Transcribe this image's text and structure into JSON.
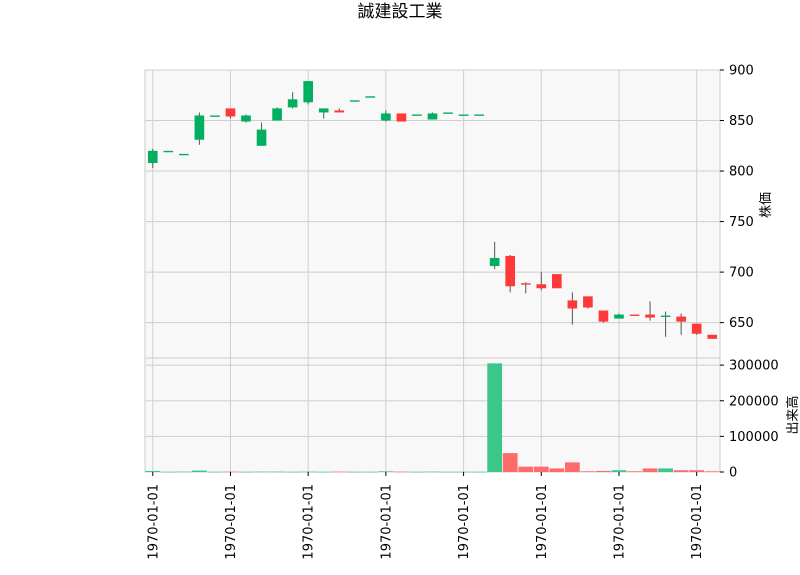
{
  "chart_data": {
    "type": "candlestick",
    "title": "誠建設工業",
    "price_ylabel": "株価",
    "volume_ylabel": "出来高",
    "price_ylim": [
      615,
      900
    ],
    "price_yticks": [
      "650",
      "700",
      "750",
      "800",
      "850",
      "900"
    ],
    "volume_ylim": [
      0,
      320000
    ],
    "volume_yticks": [
      "0",
      "100000",
      "200000",
      "300000"
    ],
    "xtick_labels": [
      "1970-01-01",
      "1970-01-01",
      "1970-01-01",
      "1970-01-01",
      "1970-01-01",
      "1970-01-01",
      "1970-01-01",
      "1970-01-01"
    ],
    "up_color": "#00b060",
    "down_color": "#ff3838",
    "volume_down_color": "#ff6b6b",
    "volume_up_color": "#3cc78a",
    "candles": [
      {
        "open": 808,
        "high": 822,
        "low": 803,
        "close": 820,
        "volume": 3000
      },
      {
        "open": 820,
        "high": 820,
        "low": 820,
        "close": 820,
        "volume": 500
      },
      {
        "open": 817,
        "high": 817,
        "low": 817,
        "close": 817,
        "volume": 1000
      },
      {
        "open": 831,
        "high": 858,
        "low": 826,
        "close": 855,
        "volume": 4000
      },
      {
        "open": 855,
        "high": 855,
        "low": 855,
        "close": 855,
        "volume": 500
      },
      {
        "open": 862,
        "high": 862,
        "low": 852,
        "close": 854,
        "volume": 1000
      },
      {
        "open": 849,
        "high": 856,
        "low": 848,
        "close": 855,
        "volume": 500
      },
      {
        "open": 825,
        "high": 848,
        "low": 825,
        "close": 841,
        "volume": 1000
      },
      {
        "open": 850,
        "high": 863,
        "low": 850,
        "close": 862,
        "volume": 1000
      },
      {
        "open": 863,
        "high": 878,
        "low": 862,
        "close": 871,
        "volume": 500
      },
      {
        "open": 868,
        "high": 889,
        "low": 866,
        "close": 889,
        "volume": 1000
      },
      {
        "open": 858,
        "high": 862,
        "low": 852,
        "close": 862,
        "volume": 500
      },
      {
        "open": 860,
        "high": 862,
        "low": 858,
        "close": 858,
        "volume": 1000
      },
      {
        "open": 870,
        "high": 870,
        "low": 870,
        "close": 870,
        "volume": 500
      },
      {
        "open": 874,
        "high": 874,
        "low": 874,
        "close": 874,
        "volume": 500
      },
      {
        "open": 850,
        "high": 860,
        "low": 849,
        "close": 857,
        "volume": 2000
      },
      {
        "open": 857,
        "high": 857,
        "low": 849,
        "close": 849,
        "volume": 1000
      },
      {
        "open": 856,
        "high": 856,
        "low": 856,
        "close": 856,
        "volume": 500
      },
      {
        "open": 851,
        "high": 858,
        "low": 851,
        "close": 857,
        "volume": 1000
      },
      {
        "open": 858,
        "high": 858,
        "low": 858,
        "close": 858,
        "volume": 500
      },
      {
        "open": 856,
        "high": 856,
        "low": 856,
        "close": 856,
        "volume": 500
      },
      {
        "open": 856,
        "high": 856,
        "low": 856,
        "close": 856,
        "volume": 500
      },
      {
        "open": 706,
        "high": 730,
        "low": 703,
        "close": 714,
        "volume": 305000
      },
      {
        "open": 716,
        "high": 717,
        "low": 680,
        "close": 686,
        "volume": 53000
      },
      {
        "open": 689,
        "high": 690,
        "low": 679,
        "close": 688,
        "volume": 15000
      },
      {
        "open": 688,
        "high": 700,
        "low": 682,
        "close": 684,
        "volume": 15000
      },
      {
        "open": 698,
        "high": 698,
        "low": 684,
        "close": 684,
        "volume": 10000
      },
      {
        "open": 672,
        "high": 680,
        "low": 648,
        "close": 664,
        "volume": 27000
      },
      {
        "open": 676,
        "high": 676,
        "low": 664,
        "close": 665,
        "volume": 2000
      },
      {
        "open": 662,
        "high": 662,
        "low": 650,
        "close": 651,
        "volume": 3000
      },
      {
        "open": 654,
        "high": 659,
        "low": 654,
        "close": 658,
        "volume": 5000
      },
      {
        "open": 658,
        "high": 658,
        "low": 657,
        "close": 657,
        "volume": 2000
      },
      {
        "open": 658,
        "high": 671,
        "low": 652,
        "close": 655,
        "volume": 10000
      },
      {
        "open": 656,
        "high": 661,
        "low": 636,
        "close": 657,
        "volume": 10000
      },
      {
        "open": 656,
        "high": 659,
        "low": 638,
        "close": 651,
        "volume": 5000
      },
      {
        "open": 649,
        "high": 649,
        "low": 638,
        "close": 639,
        "volume": 5000
      },
      {
        "open": 638,
        "high": 638,
        "low": 634,
        "close": 634,
        "volume": 2000
      }
    ]
  }
}
